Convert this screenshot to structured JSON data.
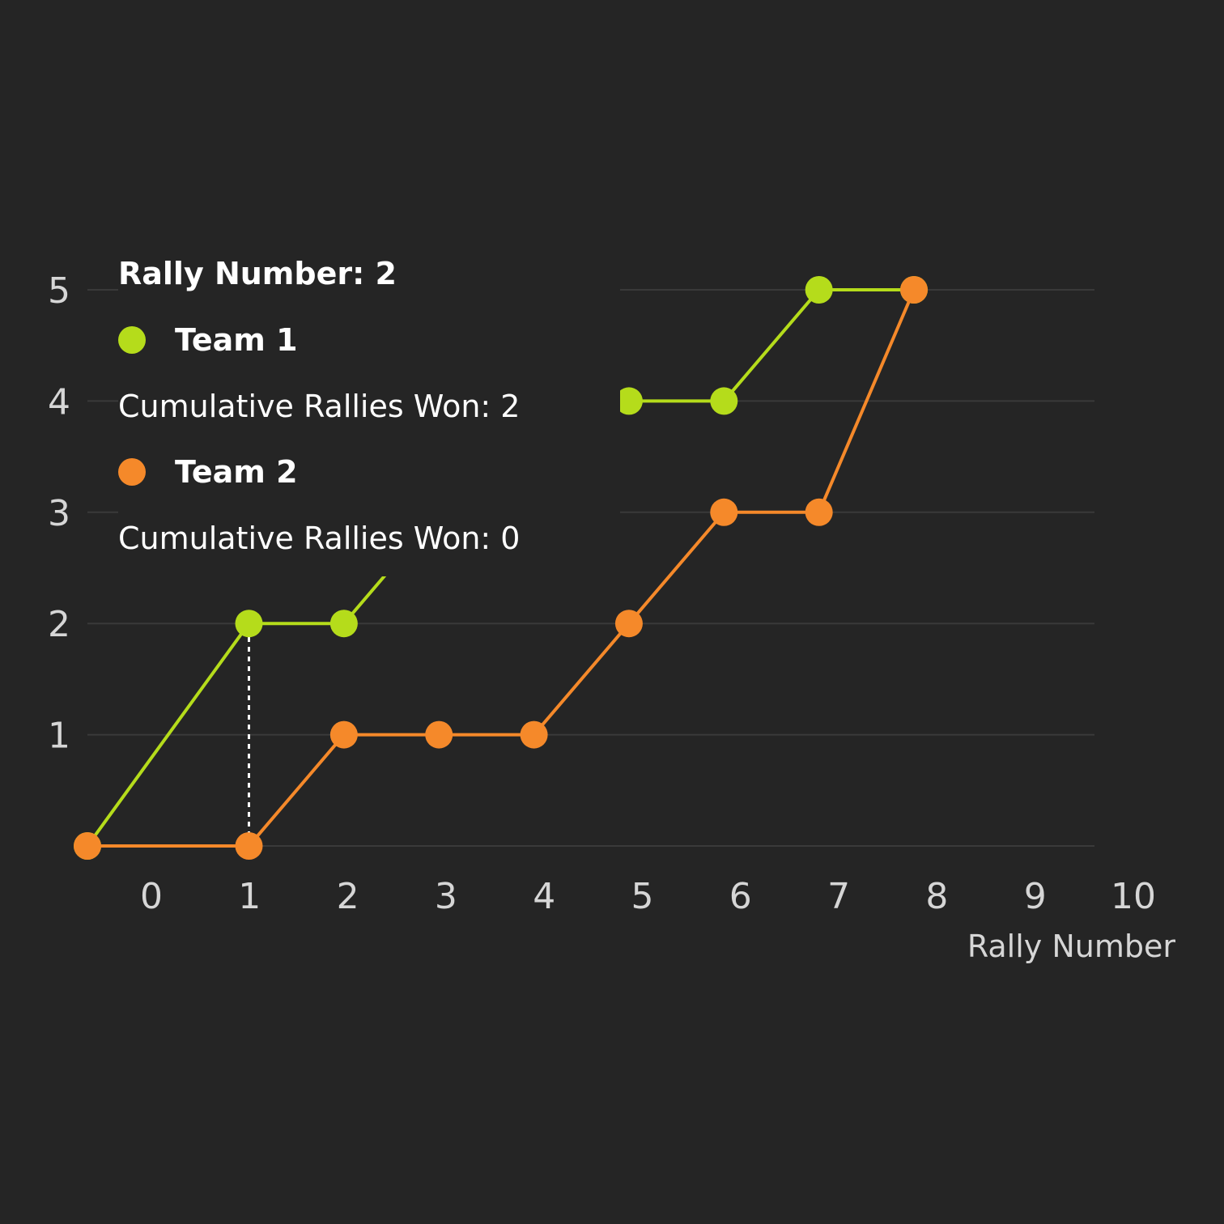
{
  "chart_data": {
    "type": "line",
    "title": "",
    "xlabel": "Rally Number",
    "ylabel": "",
    "xlim": [
      -0.6,
      10
    ],
    "ylim": [
      0,
      5
    ],
    "x_ticks": [
      0,
      1,
      2,
      3,
      4,
      5,
      6,
      7,
      8,
      9,
      10
    ],
    "y_ticks": [
      1,
      2,
      3,
      4,
      5
    ],
    "grid": true,
    "series": [
      {
        "name": "Team 1",
        "color": "#b5dc1b",
        "x": [
          0,
          2,
          3,
          4,
          5,
          6,
          7,
          8,
          9
        ],
        "y": [
          0,
          2,
          2,
          3,
          4,
          4,
          4,
          5,
          5
        ]
      },
      {
        "name": "Team 2",
        "color": "#f5892a",
        "x": [
          0,
          2,
          3,
          4,
          5,
          6,
          7,
          8,
          9
        ],
        "y": [
          0,
          0,
          1,
          1,
          1,
          2,
          3,
          3,
          5
        ]
      }
    ],
    "hover_x": 2
  },
  "tooltip": {
    "title": "Rally Number: 2",
    "items": [
      {
        "name": "Team 1",
        "value_text": "Cumulative Rallies Won: 2",
        "color": "#b5dc1b"
      },
      {
        "name": "Team 2",
        "value_text": "Cumulative Rallies Won: 0",
        "color": "#f5892a"
      }
    ]
  }
}
